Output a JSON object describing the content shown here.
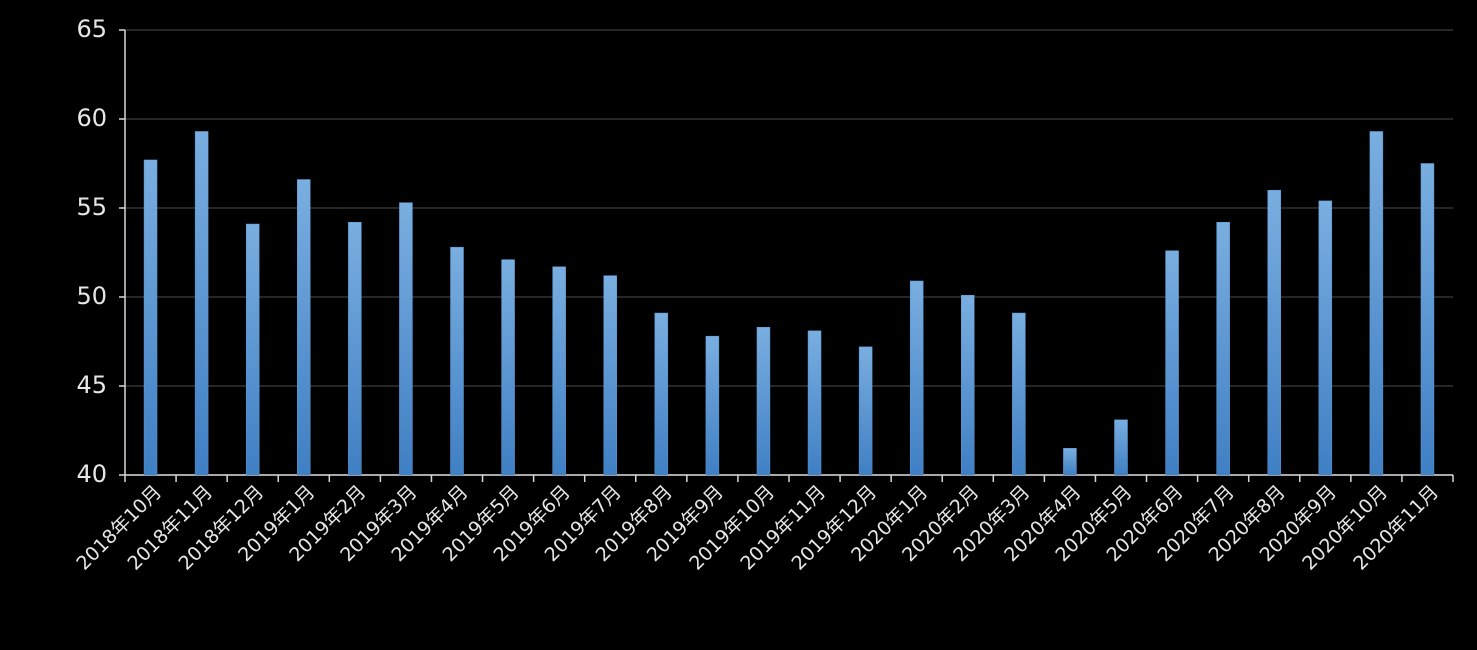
{
  "chart_data": {
    "type": "bar",
    "categories": [
      "2018年10月",
      "2018年11月",
      "2018年12月",
      "2019年1月",
      "2019年2月",
      "2019年3月",
      "2019年4月",
      "2019年5月",
      "2019年6月",
      "2019年7月",
      "2019年8月",
      "2019年9月",
      "2019年10月",
      "2019年11月",
      "2019年12月",
      "2020年1月",
      "2020年2月",
      "2020年3月",
      "2020年4月",
      "2020年5月",
      "2020年6月",
      "2020年7月",
      "2020年8月",
      "2020年9月",
      "2020年10月",
      "2020年11月"
    ],
    "values": [
      57.7,
      59.3,
      54.1,
      56.6,
      54.2,
      55.3,
      52.8,
      52.1,
      51.7,
      51.2,
      49.1,
      47.8,
      48.3,
      48.1,
      47.2,
      50.9,
      50.1,
      49.1,
      41.5,
      43.1,
      52.6,
      54.2,
      56.0,
      55.4,
      59.3,
      57.5
    ],
    "color": "#5b9bd5",
    "ylim": [
      40,
      65
    ],
    "yticks": [
      40,
      45,
      50,
      55,
      60,
      65
    ],
    "grid": true
  }
}
